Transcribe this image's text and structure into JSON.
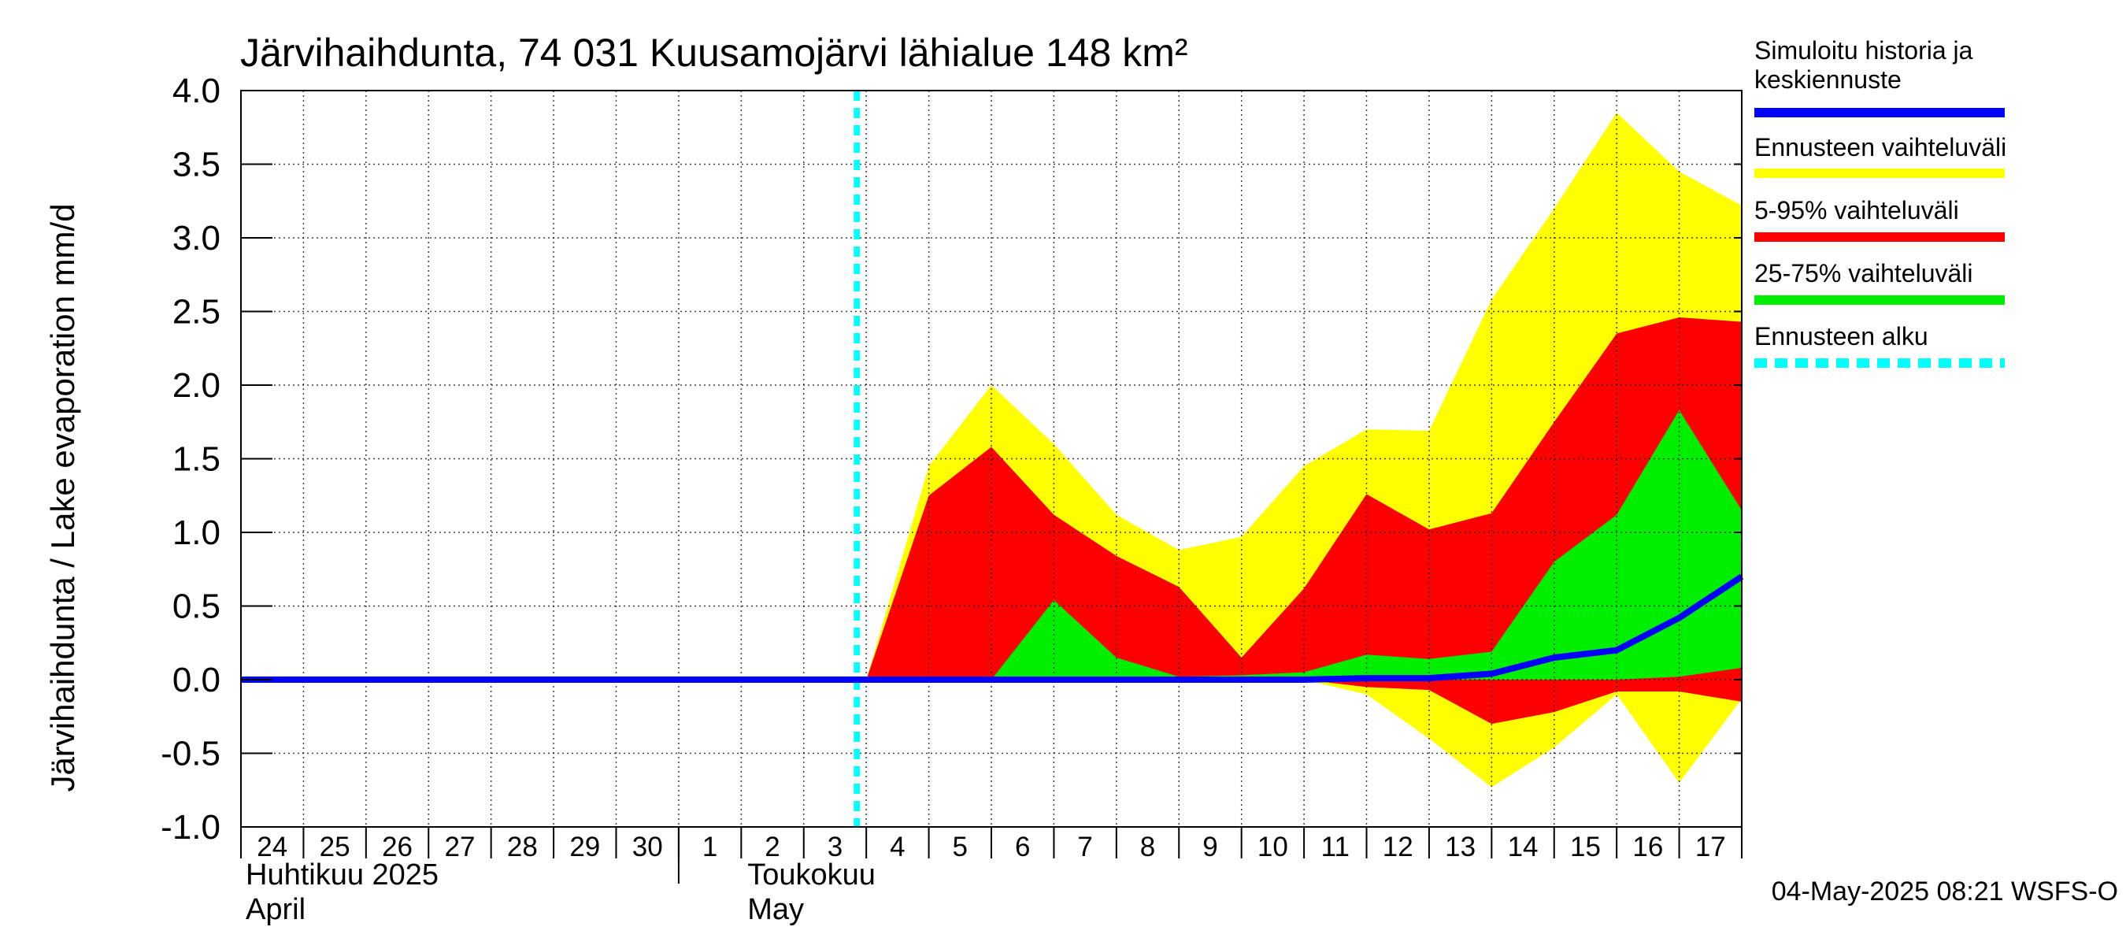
{
  "chart_data": {
    "type": "area",
    "title": "Järvihaihdunta, 74 031 Kuusamojärvi lähialue 148 km²",
    "ylabel": "Järvihaihdunta / Lake evaporation   mm/d",
    "ylim": [
      -1.0,
      4.0
    ],
    "yticks": [
      "4.0",
      "3.5",
      "3.0",
      "2.5",
      "2.0",
      "1.5",
      "1.0",
      "0.5",
      "0.0",
      "-0.5",
      "-1.0"
    ],
    "ytick_values": [
      4.0,
      3.5,
      3.0,
      2.5,
      2.0,
      1.5,
      1.0,
      0.5,
      0.0,
      -0.5,
      -1.0
    ],
    "day_labels": [
      "24",
      "25",
      "26",
      "27",
      "28",
      "29",
      "30",
      "1",
      "2",
      "3",
      "4",
      "5",
      "6",
      "7",
      "8",
      "9",
      "10",
      "11",
      "12",
      "13",
      "14",
      "15",
      "16",
      "17"
    ],
    "month_labels": [
      {
        "fi": "Huhtikuu  2025",
        "en": "April",
        "day_index": 0
      },
      {
        "fi": "Toukokuu",
        "en": "May",
        "day_index": 8
      }
    ],
    "forecast_start_index": 10,
    "series": [
      {
        "name": "Ennusteen vaihteluväli",
        "color": "#ffff00",
        "x": [
          10,
          11,
          12,
          13,
          14,
          15,
          16,
          17,
          18,
          19,
          20,
          21,
          22,
          23,
          24
        ],
        "upper": [
          0.0,
          1.45,
          2.0,
          1.6,
          1.12,
          0.88,
          0.97,
          1.45,
          1.7,
          1.69,
          2.58,
          3.2,
          3.85,
          3.45,
          3.22
        ],
        "lower": [
          0.0,
          0.0,
          0.0,
          0.0,
          0.0,
          0.0,
          0.0,
          0.0,
          -0.1,
          -0.4,
          -0.73,
          -0.46,
          -0.1,
          -0.7,
          -0.13
        ]
      },
      {
        "name": "5-95% vaihteluväli",
        "color": "#ff0000",
        "x": [
          10,
          11,
          12,
          13,
          14,
          15,
          16,
          17,
          18,
          19,
          20,
          21,
          22,
          23,
          24
        ],
        "upper": [
          0.0,
          1.25,
          1.58,
          1.12,
          0.84,
          0.63,
          0.15,
          0.62,
          1.26,
          1.02,
          1.13,
          1.75,
          2.35,
          2.46,
          2.43
        ],
        "lower": [
          0.0,
          0.0,
          0.0,
          0.0,
          0.0,
          0.0,
          0.0,
          0.0,
          -0.05,
          -0.07,
          -0.3,
          -0.22,
          -0.08,
          -0.08,
          -0.15
        ]
      },
      {
        "name": "25-75% vaihteluväli",
        "color": "#00ee00",
        "x": [
          10,
          11,
          12,
          13,
          14,
          15,
          16,
          17,
          18,
          19,
          20,
          21,
          22,
          23,
          24
        ],
        "upper": [
          0.0,
          0.0,
          0.0,
          0.54,
          0.15,
          0.02,
          0.03,
          0.05,
          0.17,
          0.14,
          0.19,
          0.8,
          1.12,
          1.83,
          1.15
        ],
        "lower": [
          0.0,
          0.0,
          0.0,
          0.0,
          0.0,
          0.0,
          0.0,
          0.0,
          0.0,
          0.0,
          0.0,
          0.0,
          0.0,
          0.02,
          0.08
        ]
      },
      {
        "name": "Simuloitu historia ja keskiennuste",
        "color": "#0000ff",
        "x": [
          0,
          1,
          2,
          3,
          4,
          5,
          6,
          7,
          8,
          9,
          10,
          11,
          12,
          13,
          14,
          15,
          16,
          17,
          18,
          19,
          20,
          21,
          22,
          23,
          24
        ],
        "values": [
          0,
          0,
          0,
          0,
          0,
          0,
          0,
          0,
          0,
          0,
          0,
          0,
          0,
          0,
          0,
          0,
          0,
          0,
          0.01,
          0.01,
          0.04,
          0.15,
          0.2,
          0.42,
          0.7
        ]
      }
    ],
    "legend_position": "right",
    "legend": [
      {
        "label": "Simuloitu historia ja keskiennuste",
        "lines": [
          "Simuloitu historia ja",
          "keskiennuste"
        ],
        "color": "#0000ff",
        "style": "solid"
      },
      {
        "label": "Ennusteen vaihteluväli",
        "lines": [
          "Ennusteen vaihteluväli"
        ],
        "color": "#ffff00",
        "style": "solid"
      },
      {
        "label": "5-95% vaihteluväli",
        "lines": [
          "5-95% vaihteluväli"
        ],
        "color": "#ff0000",
        "style": "solid"
      },
      {
        "label": "25-75% vaihteluväli",
        "lines": [
          "25-75% vaihteluväli"
        ],
        "color": "#00ee00",
        "style": "solid"
      },
      {
        "label": "Ennusteen alku",
        "lines": [
          "Ennusteen alku"
        ],
        "color": "#00ffff",
        "style": "dashed"
      }
    ],
    "footer": "04-May-2025 08:21 WSFS-O",
    "grid": true
  }
}
